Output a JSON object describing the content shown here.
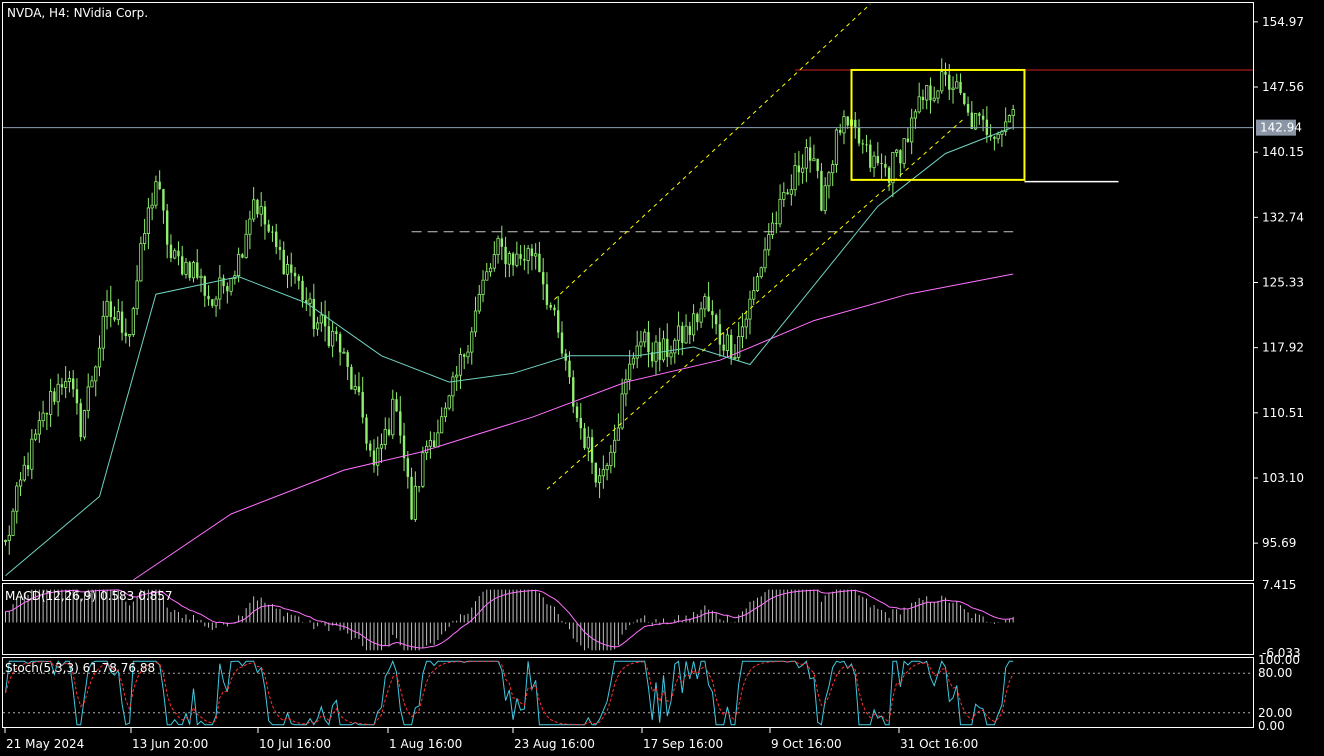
{
  "chart_data": {
    "type": "candlestick",
    "title": "NVDA, H4:  NVidia Corp.",
    "symbol": "NVDA",
    "timeframe": "H4",
    "instrument": "NVidia Corp.",
    "last_price": 142.94,
    "last_price_label": "142.94",
    "price_axis_ticks": [
      "154.97",
      "147.56",
      "140.15",
      "132.74",
      "125.33",
      "117.92",
      "110.51",
      "103.10",
      "95.69"
    ],
    "ylim": [
      91.5,
      157.0
    ],
    "time_axis_ticks": [
      "21 May 2024",
      "13 Jun 20:00",
      "10 Jul 16:00",
      "1 Aug 16:00",
      "23 Aug 16:00",
      "17 Sep 16:00",
      "9 Oct 16:00",
      "31 Oct 16:00"
    ],
    "bars_visible": 330,
    "price_anchors": [
      [
        0,
        95.5
      ],
      [
        5,
        104
      ],
      [
        12,
        112
      ],
      [
        16,
        115
      ],
      [
        20,
        109
      ],
      [
        27,
        122
      ],
      [
        33,
        120
      ],
      [
        37,
        131
      ],
      [
        40,
        137
      ],
      [
        44,
        128
      ],
      [
        50,
        127
      ],
      [
        55,
        123
      ],
      [
        62,
        128
      ],
      [
        66,
        135
      ],
      [
        72,
        129
      ],
      [
        77,
        126
      ],
      [
        82,
        121
      ],
      [
        88,
        119
      ],
      [
        95,
        110
      ],
      [
        98,
        104
      ],
      [
        104,
        112
      ],
      [
        108,
        99
      ],
      [
        112,
        107
      ],
      [
        117,
        110
      ],
      [
        121,
        116
      ],
      [
        127,
        125
      ],
      [
        131,
        129
      ],
      [
        136,
        128
      ],
      [
        141,
        129
      ],
      [
        147,
        119
      ],
      [
        152,
        110
      ],
      [
        158,
        103
      ],
      [
        163,
        110
      ],
      [
        168,
        119
      ],
      [
        174,
        117
      ],
      [
        182,
        120
      ],
      [
        186,
        123
      ],
      [
        190,
        119
      ],
      [
        194,
        118
      ],
      [
        199,
        124
      ],
      [
        203,
        131
      ],
      [
        208,
        135
      ],
      [
        213,
        141
      ],
      [
        217,
        135
      ],
      [
        222,
        143
      ],
      [
        226,
        142
      ],
      [
        230,
        139
      ],
      [
        235,
        138
      ],
      [
        240,
        142
      ],
      [
        244,
        146
      ],
      [
        248,
        148
      ],
      [
        252,
        148
      ],
      [
        256,
        144
      ],
      [
        260,
        143
      ],
      [
        265,
        143
      ],
      [
        268,
        145
      ]
    ],
    "indicators": {
      "ma_fast": {
        "color": "#6fd3c2",
        "points": [
          [
            0,
            92
          ],
          [
            25,
            101
          ],
          [
            40,
            124
          ],
          [
            62,
            126
          ],
          [
            80,
            123
          ],
          [
            100,
            117
          ],
          [
            118,
            114
          ],
          [
            135,
            115
          ],
          [
            150,
            117
          ],
          [
            168,
            117
          ],
          [
            183,
            118
          ],
          [
            198,
            116
          ],
          [
            215,
            125
          ],
          [
            232,
            134
          ],
          [
            250,
            140
          ],
          [
            262,
            142
          ],
          [
            268,
            143
          ]
        ]
      },
      "ma_slow": {
        "color": "#ff70ff",
        "points": [
          [
            34,
            91.5
          ],
          [
            60,
            99
          ],
          [
            90,
            104
          ],
          [
            110,
            106
          ],
          [
            140,
            110
          ],
          [
            165,
            114
          ],
          [
            190,
            116.5
          ],
          [
            215,
            121
          ],
          [
            240,
            124
          ],
          [
            268,
            126.3
          ]
        ]
      }
    },
    "macd": {
      "label": "MACD(12,26,9) 0.583 0.857",
      "params": "12,26,9",
      "value": 0.583,
      "signal": 0.857,
      "ylim": [
        -6.033,
        7.415
      ],
      "ticks": [
        "7.415",
        "-6.033"
      ],
      "signal_color": "#ff70ff"
    },
    "stochastic": {
      "label": "Stoch(5,3,3) 61.78 76.88",
      "params": "5,3,3",
      "k": 61.78,
      "d": 76.88,
      "ylim": [
        0,
        100
      ],
      "levels": [
        20,
        80
      ],
      "ticks": [
        "100.00",
        "80.00",
        "20.00",
        "0.00"
      ],
      "k_color": "#40c8e0",
      "d_color": "#ff3030"
    },
    "drawings": [
      {
        "type": "horizontal_line",
        "price": 149.5,
        "color": "#d02020",
        "from_bar": 210
      },
      {
        "type": "horizontal_line",
        "price": 142.94,
        "color": "#8aa0b4"
      },
      {
        "type": "rectangle",
        "price_top": 149.5,
        "price_bottom": 137.0,
        "from_bar": 225,
        "to_bar": 271,
        "color": "#ffff00"
      },
      {
        "type": "trend_segment",
        "price": 136.8,
        "from_bar": 271,
        "to_bar": 296,
        "color": "#ffffff"
      },
      {
        "type": "dashed_horizontal",
        "price": 131.1,
        "from_bar": 108,
        "to_bar": 268,
        "color": "#c8c8c8"
      },
      {
        "type": "channel",
        "color": "#ffff00",
        "style": "dashed",
        "upper": [
          [
            146,
            123.4
          ],
          [
            230,
            157.0
          ]
        ],
        "lower": [
          [
            144,
            101.8
          ],
          [
            255,
            144.0
          ]
        ]
      }
    ],
    "colors": {
      "background": "#000000",
      "bull_candle": "#90ee70",
      "bear_candle": "#90ee70",
      "grid_and_frame": "#ffffff",
      "macd_histogram": "#c0c0c0"
    }
  }
}
